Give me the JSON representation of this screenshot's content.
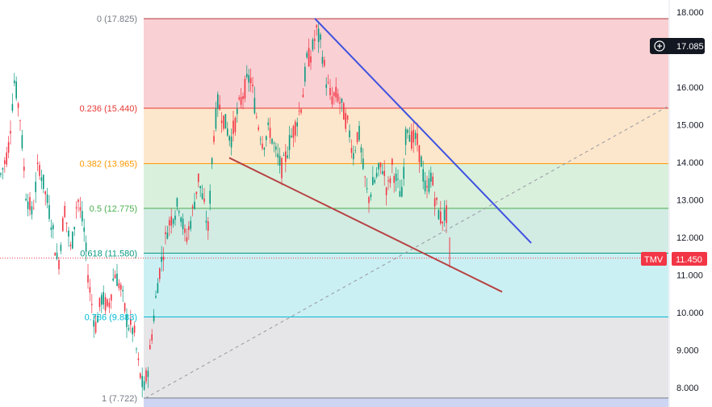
{
  "chart_data": {
    "type": "candlestick",
    "symbol": "TMV",
    "last_price": "11.450",
    "crosshair_price": "17.085",
    "y_range": [
      7.6,
      18.2
    ],
    "y_ticks": [
      "8.000",
      "9.000",
      "10.000",
      "11.000",
      "12.000",
      "13.000",
      "14.000",
      "15.000",
      "16.000",
      "17.000",
      "18.000"
    ],
    "fib_levels": [
      {
        "ratio": "0",
        "price": 17.825,
        "label": "0 (17.825)",
        "line_color": "#b2363b",
        "fill": "#f9d0d3",
        "label_color": "#787b86"
      },
      {
        "ratio": "0.236",
        "price": 15.44,
        "label": "0.236 (15.440)",
        "line_color": "#e53935",
        "fill": "#fde7cc",
        "label_color": "#e53935"
      },
      {
        "ratio": "0.382",
        "price": 13.965,
        "label": "0.382 (13.965)",
        "line_color": "#ff9800",
        "fill": "#d9f0dd",
        "label_color": "#ff9800"
      },
      {
        "ratio": "0.5",
        "price": 12.775,
        "label": "0.5 (12.775)",
        "line_color": "#4caf50",
        "fill": "#d2ebe3",
        "label_color": "#4caf50"
      },
      {
        "ratio": "0.618",
        "price": 11.58,
        "label": "0.618 (11.580)",
        "line_color": "#089981",
        "fill": "#cbf0f3",
        "label_color": "#089981"
      },
      {
        "ratio": "0.786",
        "price": 9.883,
        "label": "0.786 (9.883)",
        "line_color": "#00bcd4",
        "fill": "#e6e6e8",
        "label_color": "#00bcd4"
      },
      {
        "ratio": "1",
        "price": 7.722,
        "label": "1 (7.722)",
        "line_color": "#787b86",
        "fill": "#cdd5f2",
        "label_color": "#787b86"
      }
    ],
    "trendlines": [
      {
        "name": "upper-trendline",
        "color": "#3f51e0",
        "x1": 390,
        "y1_price": 17.83,
        "x2": 658,
        "y2_price": 11.85
      },
      {
        "name": "lower-trendline",
        "color": "#b74343",
        "x1": 284,
        "y1_price": 14.12,
        "x2": 622,
        "y2_price": 10.55
      },
      {
        "name": "dashed-trendline",
        "color": "#9598a1",
        "x1": 180,
        "y1_price": 7.72,
        "x2": 828,
        "y2_price": 15.5
      }
    ],
    "colors": {
      "up": "#089981",
      "down": "#f23645",
      "price_tag": "#f23645",
      "crosshair_tag": "#131722"
    }
  }
}
